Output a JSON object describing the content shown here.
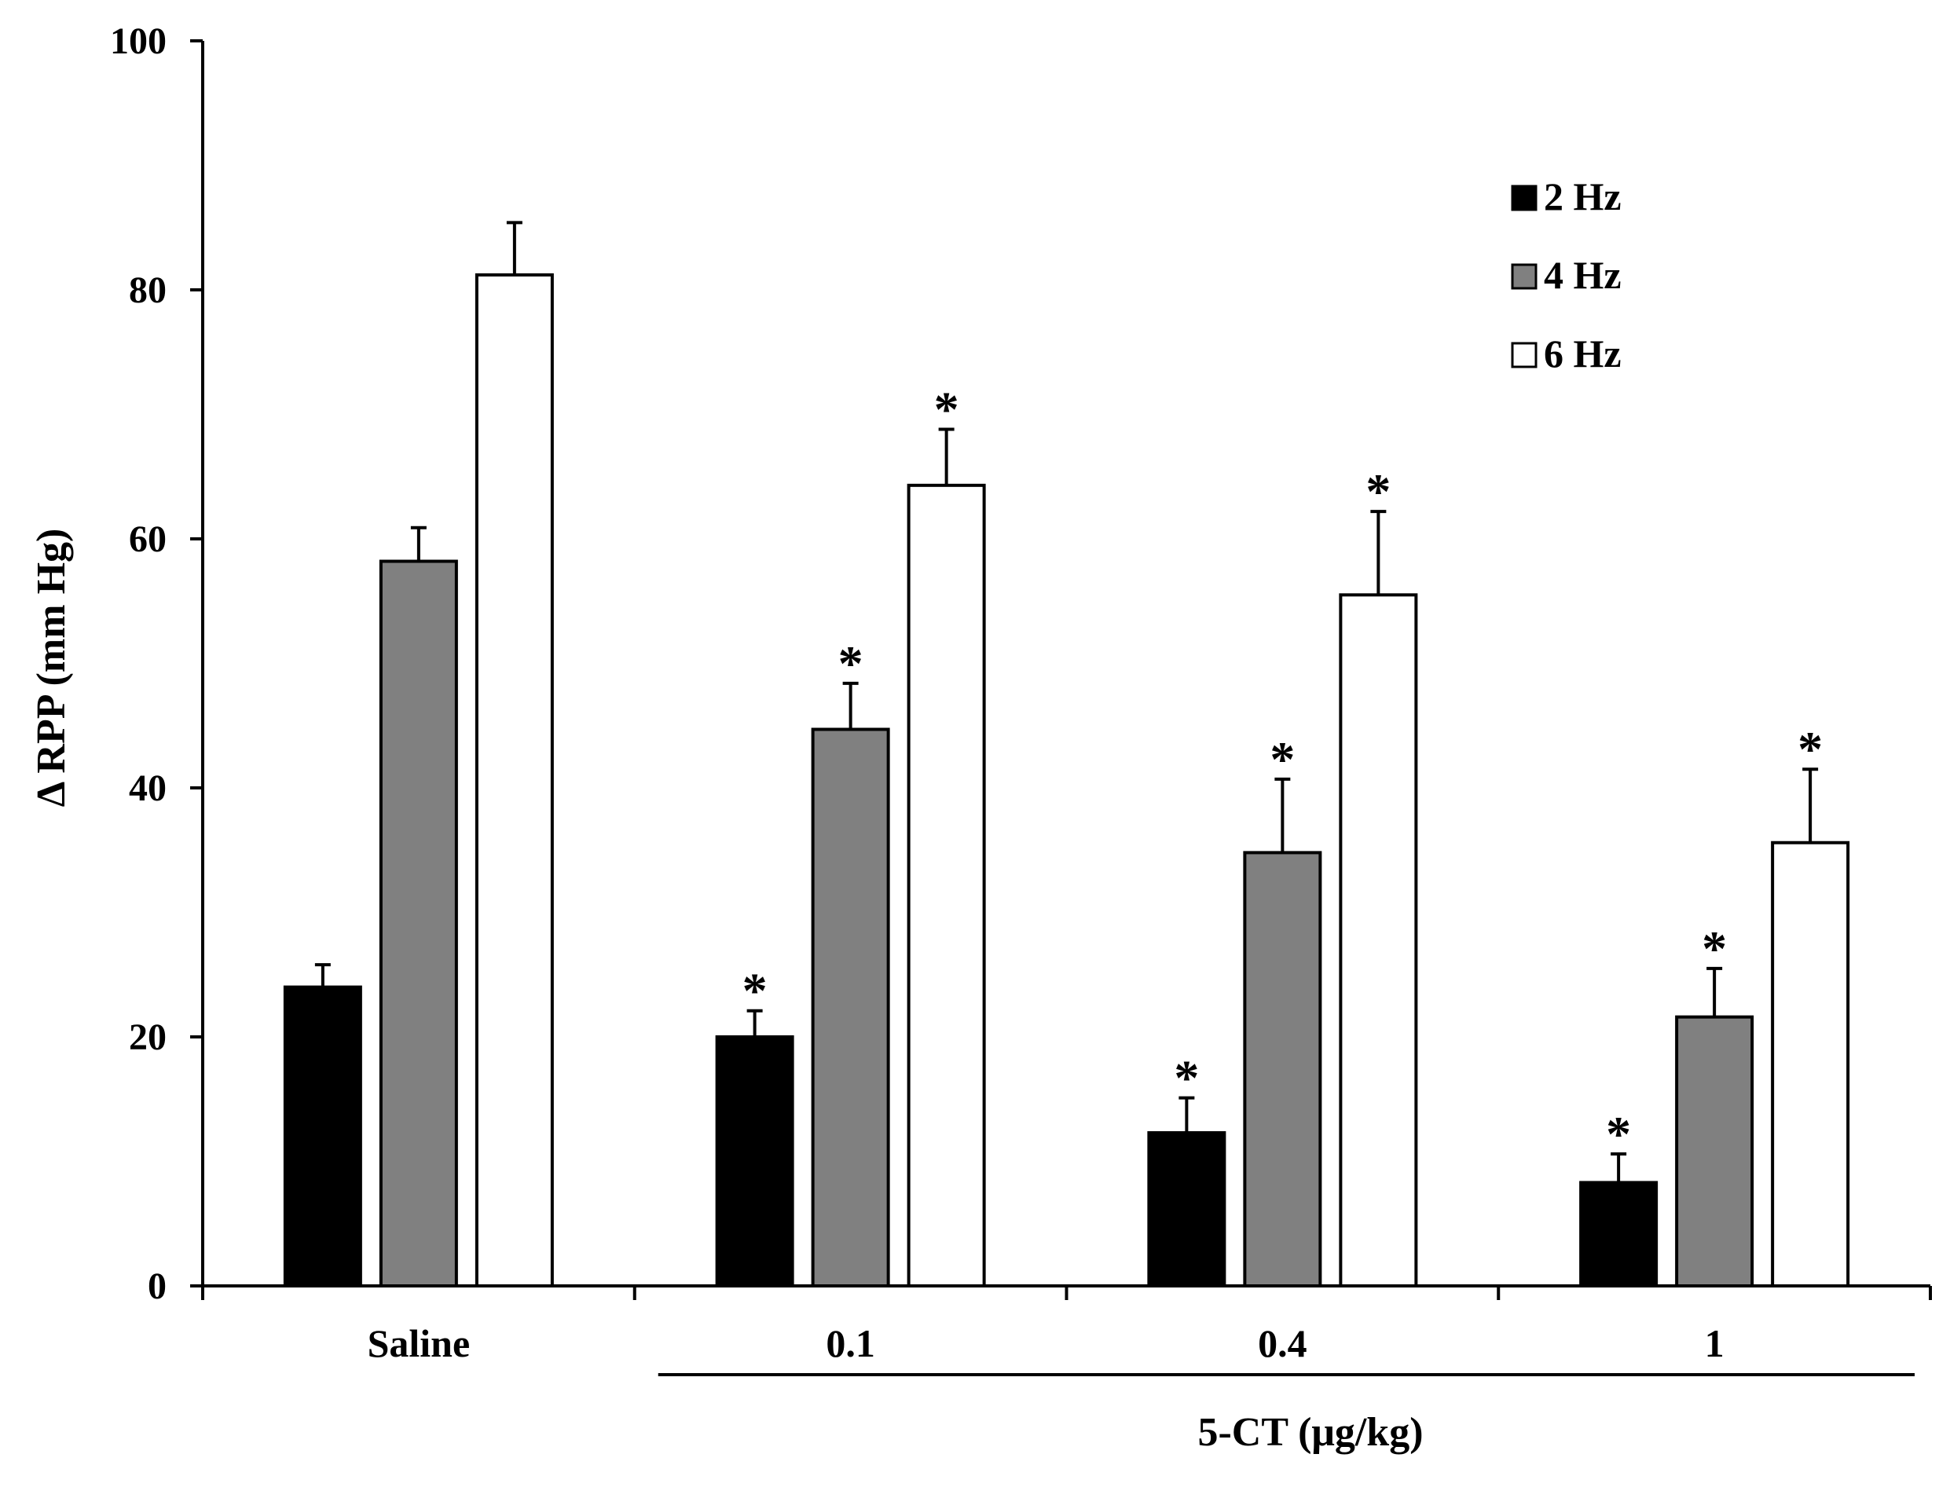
{
  "chart_data": {
    "type": "bar",
    "title": "",
    "ylabel": "Δ RPP (mm Hg)",
    "xlabel": "5-CT (μg/kg)",
    "ylim": [
      0,
      100
    ],
    "yticks": [
      0,
      20,
      40,
      60,
      80,
      100
    ],
    "grid": false,
    "legend_position": "top-right",
    "categories": [
      "Saline",
      "0.1",
      "0.4",
      "1"
    ],
    "xlabel_group": [
      "0.1",
      "0.4",
      "1"
    ],
    "series": [
      {
        "name": "2 Hz",
        "color": "#000000",
        "values": [
          24,
          20,
          12.3,
          8.3
        ],
        "errors": [
          1.8,
          2.1,
          2.8,
          2.3
        ],
        "significant": [
          false,
          true,
          true,
          true
        ]
      },
      {
        "name": "4 Hz",
        "color": "#808080",
        "values": [
          58.2,
          44.7,
          34.8,
          21.6
        ],
        "errors": [
          2.7,
          3.7,
          5.9,
          3.9
        ],
        "significant": [
          false,
          true,
          true,
          true
        ]
      },
      {
        "name": "6 Hz",
        "color": "#ffffff",
        "values": [
          81.2,
          64.3,
          55.5,
          35.6
        ],
        "errors": [
          4.2,
          4.5,
          6.7,
          5.9
        ],
        "significant": [
          false,
          true,
          true,
          true
        ]
      }
    ],
    "significance_marker": "*"
  }
}
